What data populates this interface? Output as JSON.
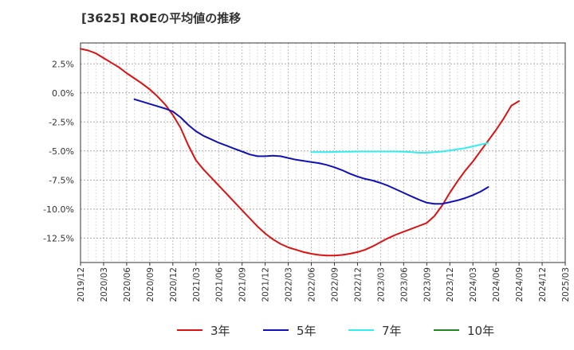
{
  "chart_data": {
    "type": "line",
    "title": "[3625]  ROEの平均値の推移",
    "xlabel": "",
    "ylabel": "",
    "ylim": [
      -14.6,
      4.3
    ],
    "xlim": [
      "2019/12",
      "2025/03"
    ],
    "grid": true,
    "legend_position": "bottom",
    "x_ticks": [
      "2019/12",
      "2020/03",
      "2020/06",
      "2020/09",
      "2020/12",
      "2021/03",
      "2021/06",
      "2021/09",
      "2021/12",
      "2022/03",
      "2022/06",
      "2022/09",
      "2022/12",
      "2023/03",
      "2023/06",
      "2023/09",
      "2023/12",
      "2024/03",
      "2024/06",
      "2024/09",
      "2024/12",
      "2025/03"
    ],
    "y_ticks": [
      2.5,
      0.0,
      -2.5,
      -5.0,
      -7.5,
      -10.0,
      -12.5
    ],
    "y_tick_labels": [
      "2.5%",
      "0.0%",
      "-2.5%",
      "-5.0%",
      "-7.5%",
      "-10.0%",
      "-12.5%"
    ],
    "series": [
      {
        "name": "3年",
        "color": "#dd1111",
        "points": [
          [
            "2019/12",
            3.8
          ],
          [
            "2020/01",
            3.65
          ],
          [
            "2020/02",
            3.4
          ],
          [
            "2020/03",
            3.0
          ],
          [
            "2020/04",
            2.6
          ],
          [
            "2020/05",
            2.2
          ],
          [
            "2020/06",
            1.7
          ],
          [
            "2020/07",
            1.25
          ],
          [
            "2020/08",
            0.8
          ],
          [
            "2020/09",
            0.3
          ],
          [
            "2020/10",
            -0.3
          ],
          [
            "2020/11",
            -1.0
          ],
          [
            "2020/12",
            -1.9
          ],
          [
            "2020/01",
            null
          ],
          [
            "2021/01",
            -3.0
          ],
          [
            "2021/02",
            -4.5
          ],
          [
            "2021/03",
            -5.8
          ],
          [
            "2021/04",
            -6.6
          ],
          [
            "2021/05",
            -7.3
          ],
          [
            "2021/06",
            -8.0
          ],
          [
            "2021/07",
            -8.7
          ],
          [
            "2021/08",
            -9.4
          ],
          [
            "2021/09",
            -10.1
          ],
          [
            "2021/10",
            -10.8
          ],
          [
            "2021/11",
            -11.5
          ],
          [
            "2021/12",
            -12.1
          ],
          [
            "2022/01",
            -12.6
          ],
          [
            "2022/02",
            -13.0
          ],
          [
            "2022/03",
            -13.3
          ],
          [
            "2022/04",
            -13.5
          ],
          [
            "2022/05",
            -13.7
          ],
          [
            "2022/06",
            -13.85
          ],
          [
            "2022/07",
            -13.95
          ],
          [
            "2022/08",
            -14.0
          ],
          [
            "2022/09",
            -14.0
          ],
          [
            "2022/10",
            -13.95
          ],
          [
            "2022/11",
            -13.85
          ],
          [
            "2022/12",
            -13.7
          ],
          [
            "2023/01",
            -13.5
          ],
          [
            "2023/02",
            -13.2
          ],
          [
            "2023/03",
            -12.85
          ],
          [
            "2023/04",
            -12.5
          ],
          [
            "2023/05",
            -12.2
          ],
          [
            "2023/06",
            -11.95
          ],
          [
            "2023/07",
            -11.7
          ],
          [
            "2023/08",
            -11.45
          ],
          [
            "2023/09",
            -11.2
          ],
          [
            "2023/10",
            -10.6
          ],
          [
            "2023/11",
            -9.7
          ],
          [
            "2023/12",
            -8.6
          ],
          [
            "2024/01",
            -7.6
          ],
          [
            "2024/02",
            -6.7
          ],
          [
            "2024/03",
            -5.9
          ],
          [
            "2024/04",
            -5.0
          ],
          [
            "2024/05",
            -4.1
          ],
          [
            "2024/06",
            -3.2
          ],
          [
            "2024/07",
            -2.2
          ],
          [
            "2024/08",
            -1.1
          ],
          [
            "2024/09",
            -0.7
          ]
        ]
      },
      {
        "name": "5年",
        "color": "#1111bb",
        "points": [
          [
            "2020/07",
            -0.55
          ],
          [
            "2020/08",
            -0.75
          ],
          [
            "2020/09",
            -0.95
          ],
          [
            "2020/10",
            -1.15
          ],
          [
            "2020/11",
            -1.35
          ],
          [
            "2020/12",
            -1.6
          ],
          [
            "2021/01",
            -2.1
          ],
          [
            "2021/02",
            -2.75
          ],
          [
            "2021/03",
            -3.3
          ],
          [
            "2021/04",
            -3.7
          ],
          [
            "2021/05",
            -4.0
          ],
          [
            "2021/06",
            -4.3
          ],
          [
            "2021/07",
            -4.55
          ],
          [
            "2021/08",
            -4.8
          ],
          [
            "2021/09",
            -5.05
          ],
          [
            "2021/10",
            -5.3
          ],
          [
            "2021/11",
            -5.45
          ],
          [
            "2021/12",
            -5.45
          ],
          [
            "2022/01",
            -5.4
          ],
          [
            "2022/02",
            -5.45
          ],
          [
            "2022/03",
            -5.6
          ],
          [
            "2022/04",
            -5.75
          ],
          [
            "2022/05",
            -5.85
          ],
          [
            "2022/06",
            -5.95
          ],
          [
            "2022/07",
            -6.05
          ],
          [
            "2022/08",
            -6.2
          ],
          [
            "2022/09",
            -6.4
          ],
          [
            "2022/10",
            -6.65
          ],
          [
            "2022/11",
            -6.95
          ],
          [
            "2022/12",
            -7.2
          ],
          [
            "2023/01",
            -7.4
          ],
          [
            "2023/02",
            -7.55
          ],
          [
            "2023/03",
            -7.75
          ],
          [
            "2023/04",
            -8.0
          ],
          [
            "2023/05",
            -8.3
          ],
          [
            "2023/06",
            -8.6
          ],
          [
            "2023/07",
            -8.9
          ],
          [
            "2023/08",
            -9.2
          ],
          [
            "2023/09",
            -9.45
          ],
          [
            "2023/10",
            -9.55
          ],
          [
            "2023/11",
            -9.55
          ],
          [
            "2023/12",
            -9.4
          ],
          [
            "2024/01",
            -9.25
          ],
          [
            "2024/02",
            -9.05
          ],
          [
            "2024/03",
            -8.8
          ],
          [
            "2024/04",
            -8.5
          ],
          [
            "2024/05",
            -8.1
          ]
        ]
      },
      {
        "name": "7年",
        "color": "#33eeee",
        "points": [
          [
            "2022/06",
            -5.1
          ],
          [
            "2022/07",
            -5.1
          ],
          [
            "2022/08",
            -5.1
          ],
          [
            "2022/09",
            -5.08
          ],
          [
            "2022/10",
            -5.07
          ],
          [
            "2022/11",
            -5.06
          ],
          [
            "2022/12",
            -5.05
          ],
          [
            "2023/01",
            -5.05
          ],
          [
            "2023/02",
            -5.05
          ],
          [
            "2023/03",
            -5.05
          ],
          [
            "2023/04",
            -5.05
          ],
          [
            "2023/05",
            -5.05
          ],
          [
            "2023/06",
            -5.06
          ],
          [
            "2023/07",
            -5.1
          ],
          [
            "2023/08",
            -5.15
          ],
          [
            "2023/09",
            -5.15
          ],
          [
            "2023/10",
            -5.1
          ],
          [
            "2023/11",
            -5.05
          ],
          [
            "2023/12",
            -4.95
          ],
          [
            "2024/01",
            -4.85
          ],
          [
            "2024/02",
            -4.75
          ],
          [
            "2024/03",
            -4.6
          ],
          [
            "2024/04",
            -4.45
          ],
          [
            "2024/05",
            -4.3
          ]
        ]
      },
      {
        "name": "10年",
        "color": "#228822",
        "points": []
      }
    ]
  }
}
